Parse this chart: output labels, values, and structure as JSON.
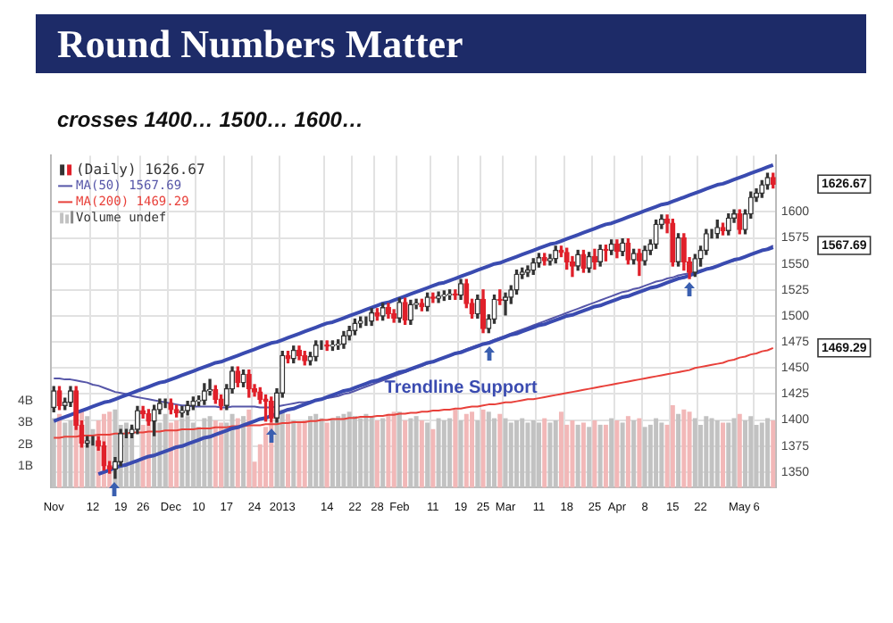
{
  "chart_data": {
    "type": "candlestick",
    "title": "Round Numbers Matter",
    "subtitle": "crosses 1400… 1500… 1600…",
    "categories": [
      "Nov",
      null,
      null,
      null,
      null,
      null,
      null,
      "12",
      null,
      null,
      null,
      null,
      "19",
      null,
      null,
      null,
      "26",
      null,
      null,
      null,
      null,
      "Dec",
      null,
      null,
      null,
      null,
      "10",
      null,
      null,
      null,
      null,
      "17",
      null,
      null,
      null,
      null,
      "24",
      null,
      null,
      null,
      null,
      "2013",
      null,
      null,
      null,
      null,
      null,
      null,
      null,
      "14",
      null,
      null,
      null,
      null,
      "22",
      null,
      null,
      null,
      "28",
      null,
      null,
      null,
      "Feb",
      null,
      null,
      null,
      null,
      null,
      "11",
      null,
      null,
      null,
      null,
      "19",
      null,
      null,
      null,
      "25",
      null,
      null,
      null,
      "Mar",
      null,
      null,
      null,
      null,
      null,
      "11",
      null,
      null,
      null,
      null,
      "18",
      null,
      null,
      null,
      null,
      "25",
      null,
      null,
      null,
      "Apr",
      null,
      null,
      null,
      null,
      "8",
      null,
      null,
      null,
      null,
      "15",
      null,
      null,
      null,
      null,
      "22",
      null,
      null,
      null,
      null,
      null,
      null,
      "May",
      null,
      null,
      "6",
      null,
      null,
      null
    ],
    "series": [
      {
        "name": "(Daily) 1626.67",
        "colors": [
          "#333333",
          "#e0202a",
          "#333333",
          "#333333",
          "#e0202a",
          "#e0202a",
          "#333333",
          "#333333",
          "#e0202a",
          "#e0202a",
          "#e0202a",
          "#333333",
          "#333333",
          "#333333",
          "#333333",
          "#333333",
          "#e0202a",
          "#e0202a",
          "#333333",
          "#333333",
          "#333333",
          "#e0202a",
          "#e0202a",
          "#333333",
          "#333333",
          "#333333",
          "#333333",
          "#333333",
          "#333333",
          "#e0202a",
          "#e0202a",
          "#333333",
          "#333333",
          "#e0202a",
          "#333333",
          "#e0202a",
          "#e0202a",
          "#e0202a",
          "#e0202a",
          "#e0202a",
          "#333333",
          "#333333",
          "#e0202a",
          "#333333",
          "#e0202a",
          "#e0202a",
          "#333333",
          "#333333",
          "#333333",
          "#e0202a",
          "#333333",
          "#333333",
          "#333333",
          "#333333",
          "#333333",
          "#333333",
          "#333333",
          "#333333",
          "#e0202a",
          "#333333",
          "#e0202a",
          "#e0202a",
          "#333333",
          "#e0202a",
          "#333333",
          "#333333",
          "#e0202a",
          "#333333",
          "#e0202a",
          "#333333",
          "#333333",
          "#333333",
          "#e0202a",
          "#333333",
          "#e0202a",
          "#e0202a",
          "#333333",
          "#e0202a",
          "#333333",
          "#333333",
          "#e0202a",
          "#333333",
          "#333333",
          "#333333",
          "#333333",
          "#333333",
          "#333333",
          "#333333",
          "#e0202a",
          "#333333",
          "#333333",
          "#e0202a",
          "#e0202a",
          "#e0202a",
          "#333333",
          "#e0202a",
          "#333333",
          "#e0202a",
          "#333333",
          "#e0202a",
          "#333333",
          "#e0202a",
          "#333333",
          "#e0202a",
          "#333333",
          "#e0202a",
          "#333333",
          "#333333",
          "#333333",
          "#333333",
          "#e0202a",
          "#e0202a",
          "#333333",
          "#e0202a",
          "#e0202a",
          "#333333",
          "#333333",
          "#333333",
          "#333333",
          "#333333",
          "#e0202a",
          "#333333",
          "#333333",
          "#e0202a",
          "#333333",
          "#333333",
          "#333333",
          "#333333",
          "#333333",
          "#e0202a"
        ],
        "ohlc": [
          [
            1412,
            1432,
            1408,
            1428
          ],
          [
            1428,
            1432,
            1410,
            1414
          ],
          [
            1414,
            1421,
            1410,
            1417
          ],
          [
            1417,
            1432,
            1413,
            1428
          ],
          [
            1428,
            1432,
            1391,
            1395
          ],
          [
            1395,
            1399,
            1374,
            1378
          ],
          [
            1378,
            1384,
            1374,
            1380
          ],
          [
            1380,
            1384,
            1376,
            1380
          ],
          [
            1380,
            1384,
            1371,
            1375
          ],
          [
            1375,
            1379,
            1352,
            1356
          ],
          [
            1356,
            1360,
            1349,
            1353
          ],
          [
            1353,
            1364,
            1344,
            1360
          ],
          [
            1360,
            1391,
            1356,
            1387
          ],
          [
            1387,
            1391,
            1383,
            1387
          ],
          [
            1387,
            1395,
            1383,
            1391
          ],
          [
            1391,
            1413,
            1387,
            1409
          ],
          [
            1409,
            1413,
            1402,
            1406
          ],
          [
            1406,
            1410,
            1395,
            1399
          ],
          [
            1399,
            1414,
            1385,
            1410
          ],
          [
            1410,
            1420,
            1406,
            1416
          ],
          [
            1416,
            1420,
            1412,
            1416
          ],
          [
            1416,
            1420,
            1406,
            1410
          ],
          [
            1410,
            1414,
            1403,
            1407
          ],
          [
            1407,
            1413,
            1403,
            1409
          ],
          [
            1409,
            1418,
            1405,
            1414
          ],
          [
            1414,
            1422,
            1410,
            1418
          ],
          [
            1418,
            1423,
            1414,
            1419
          ],
          [
            1419,
            1435,
            1415,
            1428
          ],
          [
            1428,
            1439,
            1424,
            1429
          ],
          [
            1429,
            1433,
            1416,
            1420
          ],
          [
            1420,
            1424,
            1410,
            1414
          ],
          [
            1414,
            1434,
            1410,
            1430
          ],
          [
            1430,
            1451,
            1426,
            1447
          ],
          [
            1447,
            1451,
            1432,
            1436
          ],
          [
            1436,
            1448,
            1432,
            1444
          ],
          [
            1444,
            1448,
            1422,
            1430
          ],
          [
            1430,
            1434,
            1423,
            1427
          ],
          [
            1427,
            1431,
            1416,
            1420
          ],
          [
            1420,
            1424,
            1399,
            1418
          ],
          [
            1418,
            1422,
            1398,
            1402
          ],
          [
            1402,
            1430,
            1398,
            1426
          ],
          [
            1426,
            1466,
            1422,
            1462
          ],
          [
            1462,
            1466,
            1455,
            1459
          ],
          [
            1459,
            1471,
            1455,
            1467
          ],
          [
            1467,
            1471,
            1458,
            1462
          ],
          [
            1462,
            1466,
            1453,
            1457
          ],
          [
            1457,
            1465,
            1453,
            1461
          ],
          [
            1461,
            1476,
            1457,
            1472
          ],
          [
            1472,
            1476,
            1468,
            1472
          ],
          [
            1472,
            1476,
            1467,
            1471
          ],
          [
            1471,
            1476,
            1467,
            1472
          ],
          [
            1472,
            1477,
            1468,
            1473
          ],
          [
            1473,
            1485,
            1469,
            1481
          ],
          [
            1481,
            1490,
            1477,
            1486
          ],
          [
            1486,
            1497,
            1482,
            1493
          ],
          [
            1493,
            1499,
            1489,
            1495
          ],
          [
            1495,
            1499,
            1491,
            1495
          ],
          [
            1495,
            1507,
            1491,
            1503
          ],
          [
            1503,
            1507,
            1496,
            1500
          ],
          [
            1500,
            1512,
            1496,
            1508
          ],
          [
            1508,
            1512,
            1498,
            1502
          ],
          [
            1502,
            1506,
            1494,
            1498
          ],
          [
            1498,
            1517,
            1494,
            1513
          ],
          [
            1513,
            1517,
            1492,
            1496
          ],
          [
            1496,
            1515,
            1492,
            1511
          ],
          [
            1511,
            1516,
            1507,
            1512
          ],
          [
            1512,
            1516,
            1505,
            1509
          ],
          [
            1509,
            1522,
            1505,
            1518
          ],
          [
            1518,
            1522,
            1513,
            1517
          ],
          [
            1517,
            1523,
            1513,
            1519
          ],
          [
            1519,
            1524,
            1515,
            1520
          ],
          [
            1520,
            1525,
            1516,
            1521
          ],
          [
            1521,
            1525,
            1516,
            1520
          ],
          [
            1520,
            1535,
            1516,
            1531
          ],
          [
            1531,
            1535,
            1508,
            1512
          ],
          [
            1512,
            1516,
            1498,
            1502
          ],
          [
            1502,
            1520,
            1498,
            1516
          ],
          [
            1516,
            1525,
            1484,
            1488
          ],
          [
            1488,
            1501,
            1484,
            1497
          ],
          [
            1497,
            1520,
            1493,
            1516
          ],
          [
            1516,
            1525,
            1511,
            1515
          ],
          [
            1515,
            1522,
            1501,
            1518
          ],
          [
            1518,
            1529,
            1512,
            1525
          ],
          [
            1525,
            1544,
            1521,
            1540
          ],
          [
            1540,
            1546,
            1536,
            1542
          ],
          [
            1542,
            1548,
            1538,
            1544
          ],
          [
            1544,
            1555,
            1540,
            1551
          ],
          [
            1551,
            1560,
            1547,
            1556
          ],
          [
            1556,
            1560,
            1549,
            1553
          ],
          [
            1553,
            1559,
            1549,
            1555
          ],
          [
            1555,
            1567,
            1551,
            1563
          ],
          [
            1563,
            1567,
            1557,
            1561
          ],
          [
            1561,
            1565,
            1545,
            1552
          ],
          [
            1552,
            1557,
            1538,
            1548
          ],
          [
            1548,
            1563,
            1544,
            1559
          ],
          [
            1559,
            1563,
            1542,
            1546
          ],
          [
            1546,
            1561,
            1542,
            1557
          ],
          [
            1557,
            1564,
            1545,
            1552
          ],
          [
            1552,
            1568,
            1548,
            1564
          ],
          [
            1564,
            1568,
            1553,
            1563
          ],
          [
            1563,
            1573,
            1559,
            1569
          ],
          [
            1569,
            1573,
            1556,
            1562
          ],
          [
            1562,
            1574,
            1558,
            1570
          ],
          [
            1570,
            1574,
            1550,
            1554
          ],
          [
            1554,
            1564,
            1550,
            1560
          ],
          [
            1560,
            1564,
            1539,
            1553
          ],
          [
            1553,
            1567,
            1549,
            1563
          ],
          [
            1563,
            1573,
            1559,
            1569
          ],
          [
            1569,
            1592,
            1565,
            1588
          ],
          [
            1588,
            1597,
            1584,
            1593
          ],
          [
            1593,
            1597,
            1580,
            1589
          ],
          [
            1589,
            1593,
            1548,
            1552
          ],
          [
            1552,
            1579,
            1548,
            1575
          ],
          [
            1575,
            1579,
            1544,
            1552
          ],
          [
            1552,
            1556,
            1536,
            1542
          ],
          [
            1542,
            1559,
            1538,
            1555
          ],
          [
            1555,
            1567,
            1548,
            1563
          ],
          [
            1563,
            1583,
            1559,
            1579
          ],
          [
            1579,
            1583,
            1575,
            1579
          ],
          [
            1579,
            1592,
            1575,
            1585
          ],
          [
            1585,
            1589,
            1578,
            1582
          ],
          [
            1582,
            1598,
            1578,
            1594
          ],
          [
            1594,
            1602,
            1590,
            1598
          ],
          [
            1598,
            1602,
            1579,
            1583
          ],
          [
            1583,
            1602,
            1579,
            1598
          ],
          [
            1598,
            1619,
            1594,
            1614
          ],
          [
            1614,
            1622,
            1610,
            1618
          ],
          [
            1618,
            1630,
            1614,
            1626
          ],
          [
            1626,
            1637,
            1622,
            1633
          ],
          [
            1633,
            1637,
            1623,
            1626.67
          ]
        ]
      },
      {
        "type": "line",
        "name": "MA(50) 1567.69",
        "color": "#5656a8",
        "values": [
          1440,
          1440,
          1439,
          1439,
          1438,
          1437,
          1436,
          1434,
          1433,
          1431,
          1429,
          1427,
          1426,
          1425,
          1423,
          1422,
          1421,
          1420,
          1419,
          1418,
          1417,
          1416,
          1415,
          1414,
          1414,
          1413,
          1413,
          1413,
          1413,
          1413,
          1412,
          1412,
          1413,
          1413,
          1413,
          1413,
          1413,
          1412,
          1412,
          1412,
          1413,
          1414,
          1415,
          1416,
          1417,
          1417,
          1418,
          1419,
          1420,
          1421,
          1422,
          1423,
          1425,
          1426,
          1428,
          1430,
          1432,
          1434,
          1436,
          1438,
          1440,
          1442,
          1444,
          1446,
          1448,
          1450,
          1452,
          1454,
          1456,
          1458,
          1460,
          1462,
          1464,
          1466,
          1468,
          1470,
          1472,
          1473,
          1475,
          1477,
          1479,
          1481,
          1483,
          1485,
          1487,
          1489,
          1491,
          1493,
          1495,
          1497,
          1499,
          1501,
          1503,
          1505,
          1507,
          1509,
          1511,
          1513,
          1515,
          1517,
          1519,
          1521,
          1523,
          1524,
          1526,
          1527,
          1529,
          1531,
          1533,
          1534,
          1536,
          1537,
          1539,
          1540,
          1541,
          1542,
          1544,
          1545,
          1547,
          1548,
          1550,
          1552,
          1553,
          1555,
          1557,
          1559,
          1561,
          1563,
          1565,
          1567.69
        ]
      },
      {
        "type": "line",
        "name": "MA(200) 1469.29",
        "color": "#e8403a",
        "values": [
          1383,
          1383,
          1384,
          1384,
          1384,
          1385,
          1385,
          1385,
          1386,
          1386,
          1386,
          1387,
          1387,
          1387,
          1388,
          1388,
          1388,
          1389,
          1389,
          1389,
          1390,
          1390,
          1390,
          1391,
          1391,
          1391,
          1392,
          1392,
          1392,
          1393,
          1393,
          1393,
          1394,
          1394,
          1394,
          1395,
          1395,
          1395,
          1396,
          1396,
          1396,
          1397,
          1397,
          1398,
          1398,
          1398,
          1399,
          1399,
          1400,
          1400,
          1401,
          1401,
          1401,
          1402,
          1402,
          1403,
          1403,
          1403,
          1404,
          1404,
          1405,
          1405,
          1406,
          1406,
          1407,
          1407,
          1408,
          1408,
          1409,
          1409,
          1410,
          1410,
          1411,
          1411,
          1412,
          1413,
          1413,
          1414,
          1415,
          1415,
          1416,
          1417,
          1417,
          1418,
          1419,
          1420,
          1420,
          1421,
          1422,
          1423,
          1424,
          1425,
          1426,
          1427,
          1428,
          1429,
          1430,
          1431,
          1432,
          1433,
          1434,
          1435,
          1436,
          1437,
          1438,
          1439,
          1440,
          1441,
          1442,
          1443,
          1444,
          1445,
          1446,
          1447,
          1448,
          1450,
          1451,
          1452,
          1453,
          1454,
          1455,
          1457,
          1458,
          1460,
          1461,
          1463,
          1464,
          1466,
          1467,
          1469.29
        ]
      },
      {
        "type": "bar",
        "name": "Volume undef",
        "axis": "y2",
        "values": [
          3.2,
          3.4,
          3.0,
          3.1,
          3.5,
          3.6,
          3.3,
          2.7,
          3.1,
          3.4,
          3.5,
          3.6,
          2.9,
          3.0,
          2.8,
          1.2,
          2.9,
          3.2,
          3.1,
          3.0,
          3.4,
          3.0,
          3.1,
          3.2,
          3.3,
          3.0,
          2.8,
          3.2,
          3.3,
          3.1,
          3.0,
          3.0,
          3.4,
          3.2,
          3.3,
          3.6,
          1.2,
          2.0,
          2.8,
          3.0,
          3.2,
          3.6,
          3.4,
          3.1,
          3.0,
          3.1,
          3.3,
          3.4,
          3.2,
          3.0,
          3.2,
          3.3,
          3.4,
          3.5,
          3.3,
          3.2,
          3.4,
          3.3,
          3.1,
          3.2,
          3.4,
          3.5,
          3.5,
          3.1,
          3.2,
          3.3,
          3.1,
          3.0,
          2.7,
          3.2,
          3.1,
          3.2,
          3.6,
          3.1,
          3.4,
          3.5,
          3.1,
          3.6,
          3.5,
          3.2,
          3.4,
          3.2,
          3.0,
          3.1,
          3.2,
          3.0,
          3.1,
          3.0,
          3.2,
          3.0,
          3.1,
          3.5,
          2.9,
          3.1,
          2.9,
          3.0,
          2.8,
          3.1,
          2.9,
          2.9,
          3.2,
          3.1,
          3.0,
          3.3,
          3.1,
          3.2,
          2.8,
          2.9,
          3.2,
          3.0,
          2.9,
          3.8,
          3.4,
          3.6,
          3.5,
          3.2,
          2.9,
          3.3,
          3.2,
          3.1,
          3.0,
          3.0,
          3.2,
          3.4,
          3.1,
          3.3,
          2.9,
          3.0,
          3.2,
          3.1
        ],
        "colors": [
          "#c2c2c2",
          "#f2b8b8",
          "#c2c2c2",
          "#c2c2c2",
          "#f2b8b8",
          "#f2b8b8",
          "#c2c2c2",
          "#c2c2c2",
          "#f2b8b8",
          "#f2b8b8",
          "#f2b8b8",
          "#c2c2c2",
          "#c2c2c2",
          "#c2c2c2",
          "#c2c2c2",
          "#c2c2c2",
          "#f2b8b8",
          "#f2b8b8",
          "#c2c2c2",
          "#c2c2c2",
          "#c2c2c2",
          "#f2b8b8",
          "#f2b8b8",
          "#c2c2c2",
          "#c2c2c2",
          "#c2c2c2",
          "#c2c2c2",
          "#c2c2c2",
          "#c2c2c2",
          "#f2b8b8",
          "#f2b8b8",
          "#c2c2c2",
          "#c2c2c2",
          "#f2b8b8",
          "#c2c2c2",
          "#f2b8b8",
          "#f2b8b8",
          "#f2b8b8",
          "#f2b8b8",
          "#f2b8b8",
          "#c2c2c2",
          "#c2c2c2",
          "#f2b8b8",
          "#c2c2c2",
          "#f2b8b8",
          "#f2b8b8",
          "#c2c2c2",
          "#c2c2c2",
          "#c2c2c2",
          "#f2b8b8",
          "#c2c2c2",
          "#c2c2c2",
          "#c2c2c2",
          "#c2c2c2",
          "#c2c2c2",
          "#c2c2c2",
          "#c2c2c2",
          "#c2c2c2",
          "#f2b8b8",
          "#c2c2c2",
          "#f2b8b8",
          "#f2b8b8",
          "#c2c2c2",
          "#f2b8b8",
          "#c2c2c2",
          "#c2c2c2",
          "#f2b8b8",
          "#c2c2c2",
          "#f2b8b8",
          "#c2c2c2",
          "#c2c2c2",
          "#c2c2c2",
          "#f2b8b8",
          "#c2c2c2",
          "#f2b8b8",
          "#f2b8b8",
          "#c2c2c2",
          "#f2b8b8",
          "#c2c2c2",
          "#c2c2c2",
          "#f2b8b8",
          "#c2c2c2",
          "#c2c2c2",
          "#c2c2c2",
          "#c2c2c2",
          "#c2c2c2",
          "#c2c2c2",
          "#c2c2c2",
          "#f2b8b8",
          "#c2c2c2",
          "#c2c2c2",
          "#f2b8b8",
          "#f2b8b8",
          "#f2b8b8",
          "#c2c2c2",
          "#f2b8b8",
          "#c2c2c2",
          "#f2b8b8",
          "#c2c2c2",
          "#f2b8b8",
          "#c2c2c2",
          "#f2b8b8",
          "#c2c2c2",
          "#f2b8b8",
          "#c2c2c2",
          "#f2b8b8",
          "#c2c2c2",
          "#c2c2c2",
          "#c2c2c2",
          "#c2c2c2",
          "#f2b8b8",
          "#f2b8b8",
          "#c2c2c2",
          "#f2b8b8",
          "#f2b8b8",
          "#c2c2c2",
          "#c2c2c2",
          "#c2c2c2",
          "#c2c2c2",
          "#c2c2c2",
          "#f2b8b8",
          "#c2c2c2",
          "#c2c2c2",
          "#f2b8b8",
          "#c2c2c2",
          "#c2c2c2",
          "#c2c2c2",
          "#c2c2c2",
          "#c2c2c2",
          "#f2b8b8"
        ]
      },
      {
        "type": "line",
        "color": "#3a4bb0",
        "values": [
          1399,
          1401,
          1403,
          1405,
          1407,
          1409,
          1411,
          1413,
          1415,
          1417,
          1418,
          1420,
          1422,
          1424,
          1426,
          1428,
          1430,
          1432,
          1434,
          1436,
          1437,
          1439,
          1441,
          1443,
          1445,
          1447,
          1449,
          1451,
          1453,
          1455,
          1456,
          1458,
          1460,
          1462,
          1464,
          1466,
          1468,
          1470,
          1472,
          1474,
          1475,
          1477,
          1479,
          1481,
          1483,
          1485,
          1487,
          1489,
          1491,
          1493,
          1494,
          1496,
          1498,
          1500,
          1502,
          1504,
          1506,
          1508,
          1510,
          1512,
          1513,
          1515,
          1517,
          1519,
          1521,
          1523,
          1525,
          1527,
          1529,
          1531,
          1532,
          1534,
          1536,
          1538,
          1540,
          1542,
          1544,
          1546,
          1548,
          1550,
          1551,
          1553,
          1555,
          1557,
          1559,
          1561,
          1563,
          1565,
          1567,
          1569,
          1570,
          1572,
          1574,
          1576,
          1578,
          1580,
          1582,
          1584,
          1586,
          1588,
          1589,
          1591,
          1593,
          1595,
          1597,
          1599,
          1601,
          1603,
          1605,
          1607,
          1608,
          1610,
          1612,
          1614,
          1616,
          1618,
          1620,
          1622,
          1624,
          1626,
          1627,
          1629,
          1631,
          1633,
          1635,
          1637,
          1639,
          1641,
          1643,
          1645
        ]
      },
      {
        "type": "line",
        "color": "#3a4bb0",
        "values": [
          null,
          null,
          null,
          null,
          null,
          null,
          null,
          null,
          1348,
          1350,
          1352,
          1354,
          1356,
          1357,
          1359,
          1361,
          1363,
          1365,
          1366,
          1368,
          1370,
          1372,
          1374,
          1375,
          1377,
          1379,
          1381,
          1383,
          1384,
          1386,
          1388,
          1390,
          1392,
          1393,
          1395,
          1397,
          1399,
          1401,
          1402,
          1404,
          1406,
          1408,
          1410,
          1411,
          1413,
          1415,
          1417,
          1419,
          1420,
          1422,
          1424,
          1426,
          1428,
          1429,
          1431,
          1433,
          1435,
          1437,
          1438,
          1440,
          1442,
          1444,
          1446,
          1447,
          1449,
          1451,
          1453,
          1455,
          1456,
          1458,
          1460,
          1462,
          1464,
          1465,
          1467,
          1469,
          1471,
          1473,
          1474,
          1476,
          1478,
          1480,
          1482,
          1483,
          1485,
          1487,
          1489,
          1491,
          1492,
          1494,
          1496,
          1498,
          1500,
          1501,
          1503,
          1505,
          1507,
          1509,
          1510,
          1512,
          1514,
          1516,
          1518,
          1519,
          1521,
          1523,
          1525,
          1527,
          1528,
          1530,
          1532,
          1534,
          1536,
          1537,
          1539,
          1541,
          1543,
          1545,
          1546,
          1548,
          1550,
          1552,
          1554,
          1555,
          1557,
          1559,
          1561,
          1563,
          1564,
          1566
        ]
      }
    ],
    "ylim": [
      1335,
      1654
    ],
    "yticks": [
      1350,
      1375,
      1400,
      1425,
      1450,
      1475,
      1500,
      1525,
      1550,
      1575,
      1600
    ],
    "y2lim": [
      0,
      15.3
    ],
    "y2ticks": [
      {
        "value": 1,
        "label": "1B"
      },
      {
        "value": 2,
        "label": "2B"
      },
      {
        "value": 3,
        "label": "3B"
      },
      {
        "value": 4,
        "label": "4B"
      }
    ],
    "grid": true,
    "legend": "top left",
    "marker": "none",
    "annotations": [
      "Trendline Support",
      "1626.67",
      "1567.69",
      "1469.29"
    ]
  }
}
